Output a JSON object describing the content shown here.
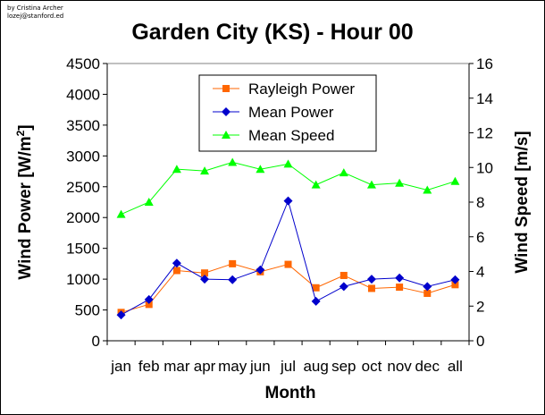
{
  "credit": {
    "author": "by Cristina Archer",
    "email": "lozej@stanford.ed"
  },
  "chart_data": {
    "type": "line",
    "title": "Garden City (KS) - Hour 00",
    "xlabel": "Month",
    "ylabel_left": "Wind Power [W/m2]",
    "ylabel_right": "Wind Speed [m/s]",
    "categories": [
      "jan",
      "feb",
      "mar",
      "apr",
      "may",
      "jun",
      "jul",
      "aug",
      "sep",
      "oct",
      "nov",
      "dec",
      "all"
    ],
    "y_left": {
      "min": 0,
      "max": 4500,
      "step": 500
    },
    "y_right": {
      "min": 0,
      "max": 16,
      "step": 2
    },
    "legend_position": "top-center",
    "series": [
      {
        "name": "Rayleigh Power",
        "axis": "left",
        "color": "#FF6600",
        "marker": "square",
        "values": [
          460,
          590,
          1140,
          1100,
          1250,
          1120,
          1240,
          860,
          1060,
          850,
          870,
          770,
          910
        ]
      },
      {
        "name": "Mean Power",
        "axis": "left",
        "color": "#0000CC",
        "marker": "diamond",
        "values": [
          420,
          670,
          1260,
          1000,
          990,
          1150,
          2270,
          640,
          880,
          1000,
          1020,
          880,
          990
        ]
      },
      {
        "name": "Mean Speed",
        "axis": "right",
        "color": "#00FF00",
        "marker": "triangle",
        "values": [
          7.3,
          8.0,
          9.9,
          9.8,
          10.3,
          9.9,
          10.2,
          9.0,
          9.7,
          9.0,
          9.1,
          8.7,
          9.2
        ]
      }
    ]
  }
}
